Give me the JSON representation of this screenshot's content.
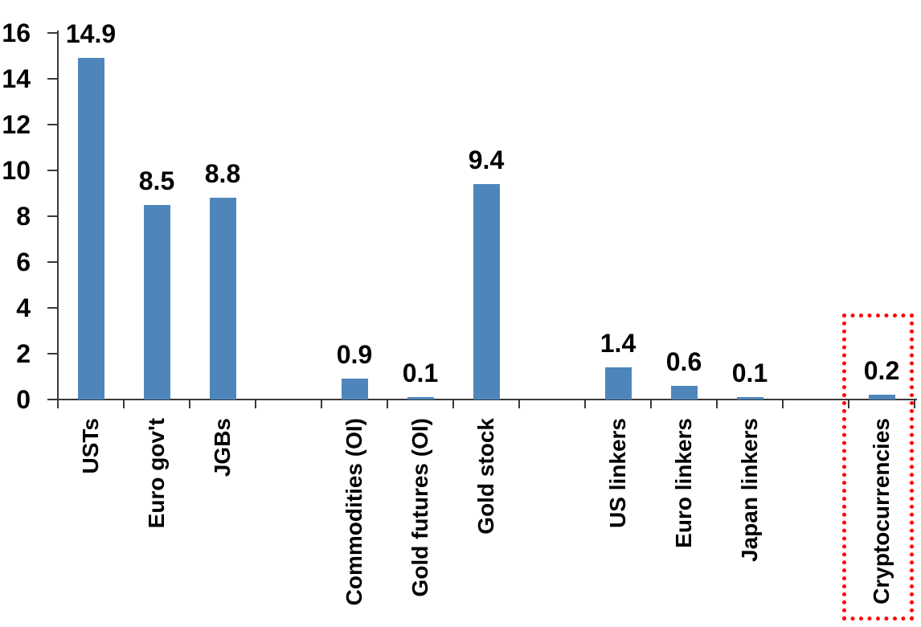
{
  "chart_data": {
    "type": "bar",
    "title": "",
    "xlabel": "",
    "ylabel": "",
    "categories": [
      "USTs",
      "Euro gov't",
      "JGBs",
      "",
      "Commodities (OI)",
      "Gold futures (OI)",
      "Gold stock",
      "",
      "US linkers",
      "Euro linkers",
      "Japan linkers",
      "",
      "Cryptocurrencies"
    ],
    "values": [
      14.9,
      8.5,
      8.8,
      null,
      0.9,
      0.1,
      9.4,
      null,
      1.4,
      0.6,
      0.1,
      null,
      0.2
    ],
    "bar_labels": [
      "14.9",
      "8.5",
      "8.8",
      "",
      "0.9",
      "0.1",
      "9.4",
      "",
      "1.4",
      "0.6",
      "0.1",
      "",
      "0.2"
    ],
    "ylim": [
      0,
      16
    ],
    "yticks": [
      0,
      2,
      4,
      6,
      8,
      10,
      12,
      14,
      16
    ],
    "grid": false,
    "legend": false,
    "bar_color": "#4E86BC",
    "axis_color": "#3A3A3A",
    "text_color": "#000000",
    "highlight": {
      "target": "Cryptocurrencies",
      "shape": "dotted-rectangle",
      "color": "#FF0000"
    }
  }
}
